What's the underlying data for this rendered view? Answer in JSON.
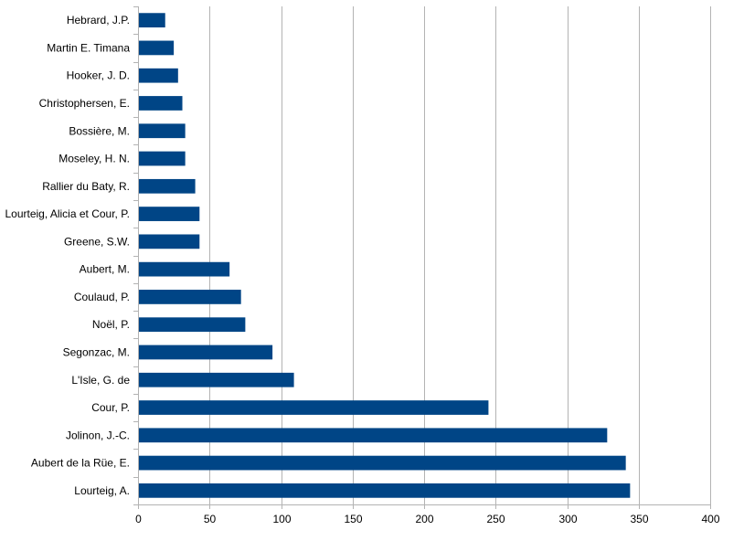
{
  "chart_data": {
    "type": "bar",
    "orientation": "horizontal",
    "title": "",
    "xlabel": "",
    "ylabel": "",
    "xlim": [
      0,
      400
    ],
    "x_ticks": [
      0,
      50,
      100,
      150,
      200,
      250,
      300,
      350,
      400
    ],
    "grid": true,
    "legend": "none",
    "bar_color": "#004586",
    "categories": [
      "Hebrard, J.P.",
      "Martin E. Timana",
      "Hooker, J. D.",
      "Christophersen, E.",
      "Bossière, M.",
      "Moseley, H. N.",
      "Rallier du Baty, R.",
      "Lourteig, Alicia et Cour, P.",
      "Greene, S.W.",
      "Aubert, M.",
      "Coulaud, P.",
      "Noël, P.",
      "Segonzac, M.",
      "L'Isle, G. de",
      "Cour, P.",
      "Jolinon, J.-C.",
      "Aubert de la Rüe, E.",
      "Lourteig, A."
    ],
    "values": [
      19,
      25,
      28,
      31,
      33,
      33,
      40,
      43,
      43,
      64,
      72,
      75,
      94,
      109,
      245,
      328,
      341,
      344
    ]
  }
}
